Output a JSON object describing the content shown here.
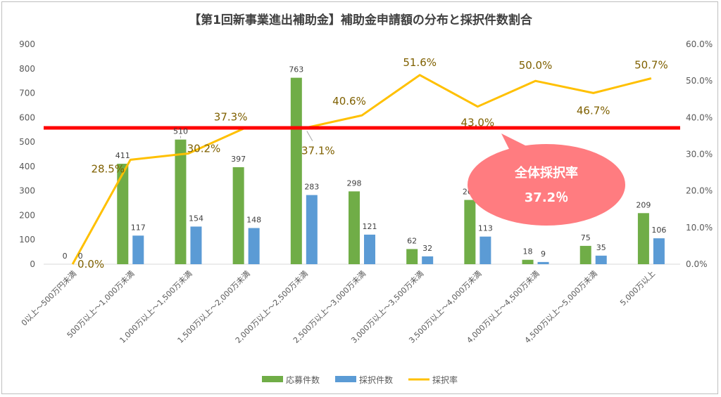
{
  "chart_data": {
    "type": "bar",
    "title": "【第1回新事業進出補助金】補助金申請額の分布と採択件数割合",
    "categories": [
      "0以上～500万円未満",
      "500万以上～1,000万未満",
      "1,000万以上～1,500万未満",
      "1,500万以上～2,000万未満",
      "2,000万以上～2,500万未満",
      "2,500万以上～3,000万未満",
      "3,000万以上～3,500万未満",
      "3,500万以上～4,000万未満",
      "4,000万以上～4,500万未満",
      "4,500万以上～5,000万未満",
      "5,000万以上"
    ],
    "series": [
      {
        "name": "応募件数",
        "type": "bar",
        "axis": "left",
        "color": "#70ad47",
        "values": [
          0,
          411,
          510,
          397,
          763,
          298,
          62,
          263,
          18,
          75,
          209
        ],
        "labels": [
          "0",
          "411",
          "510",
          "397",
          "763",
          "298",
          "62",
          "263",
          "18",
          "75",
          "209"
        ]
      },
      {
        "name": "採択件数",
        "type": "bar",
        "axis": "left",
        "color": "#5b9bd5",
        "values": [
          0,
          117,
          154,
          148,
          283,
          121,
          32,
          113,
          9,
          35,
          106
        ],
        "labels": [
          "0",
          "117",
          "154",
          "148",
          "283",
          "121",
          "32",
          "113",
          "9",
          "35",
          "106"
        ]
      },
      {
        "name": "採択率",
        "type": "line",
        "axis": "right",
        "color": "#ffc000",
        "values": [
          0.0,
          28.5,
          30.2,
          37.3,
          37.1,
          40.6,
          51.6,
          43.0,
          50.0,
          46.7,
          50.7
        ],
        "labels": [
          "0.0%",
          "28.5%",
          "30.2%",
          "37.3%",
          "37.1%",
          "40.6%",
          "51.6%",
          "43.0%",
          "50.0%",
          "46.7%",
          "50.7%"
        ]
      }
    ],
    "ylim": [
      0,
      900
    ],
    "yticks": [
      "0",
      "100",
      "200",
      "300",
      "400",
      "500",
      "600",
      "700",
      "800",
      "900"
    ],
    "y2lim": [
      0,
      60
    ],
    "y2ticks": [
      "0.0%",
      "10.0%",
      "20.0%",
      "30.0%",
      "40.0%",
      "50.0%",
      "60.0%"
    ],
    "reference_line": {
      "value": 37.2,
      "axis": "right",
      "color": "#ff0000"
    },
    "callout": {
      "line1": "全体採択率",
      "line2": "37.2％",
      "color": "#ff7c80"
    },
    "legend_position": "bottom",
    "grid": false
  }
}
